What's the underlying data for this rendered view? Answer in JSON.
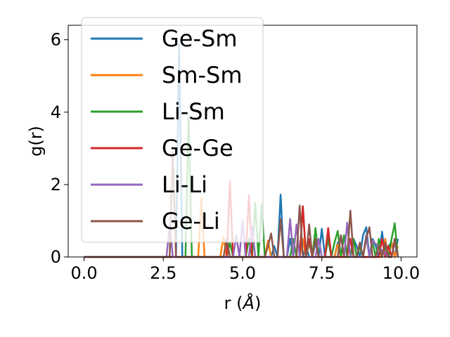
{
  "chart_data": {
    "type": "line",
    "xlabel": "r (",
    "xlabel_unit": "Å",
    "xlabel_close": ")",
    "ylabel": "g(r)",
    "xlim": [
      -0.5,
      10.5
    ],
    "ylim": [
      0,
      6.4
    ],
    "xticks": [
      0.0,
      2.5,
      5.0,
      7.5,
      10.0
    ],
    "xtick_labels": [
      "0.0",
      "2.5",
      "5.0",
      "7.5",
      "10.0"
    ],
    "yticks": [
      0,
      2,
      4,
      6
    ],
    "ytick_labels": [
      "0",
      "2",
      "4",
      "6"
    ],
    "grid": false,
    "legend_position": "top-left",
    "series": [
      {
        "name": "Ge-Sm",
        "color": "#1f77b4",
        "x": [
          0,
          2.8,
          2.9,
          3.0,
          3.1,
          3.2,
          5.8,
          5.9,
          6.0,
          6.1,
          6.2,
          6.3,
          6.4,
          6.5,
          6.6,
          6.7,
          6.8,
          6.9,
          7.0,
          7.1,
          7.2,
          7.3,
          7.4,
          7.5,
          7.6,
          7.7,
          7.8,
          7.9,
          8.0,
          8.1,
          8.2,
          8.3,
          8.4,
          8.5,
          8.6,
          8.7,
          8.8,
          8.9,
          9.0,
          9.1,
          9.2,
          9.3,
          9.4,
          9.5,
          9.6,
          9.7,
          9.8,
          9.9
        ],
        "y": [
          0,
          0,
          0,
          5.9,
          0,
          0,
          0,
          0,
          0.3,
          0,
          1.72,
          0,
          0,
          0.5,
          0,
          0,
          0,
          0,
          0.3,
          0,
          0,
          0.4,
          0,
          0.78,
          0,
          0.6,
          0,
          0,
          0.4,
          0,
          0.6,
          0,
          0,
          0.5,
          0.3,
          0,
          0.6,
          0.82,
          0,
          0.5,
          0.3,
          0,
          0.7,
          0,
          0.3,
          0.4,
          0,
          0.5
        ]
      },
      {
        "name": "Sm-Sm",
        "color": "#ff7f0e",
        "x": [
          0,
          3.5,
          3.6,
          3.7,
          3.8,
          3.9,
          4.3,
          4.4,
          4.5,
          4.6,
          5.7,
          5.8,
          5.9,
          6.8,
          6.9,
          7.0,
          7.9,
          8.0,
          8.1,
          9.3,
          9.4,
          9.5,
          9.6,
          9.7,
          9.8,
          9.9
        ],
        "y": [
          0,
          0,
          0,
          1.62,
          0,
          0,
          0,
          0.55,
          0,
          0,
          0,
          0.45,
          0,
          0,
          0.5,
          0,
          0,
          0.35,
          0,
          0,
          0,
          0.5,
          0,
          0.4,
          0,
          0.3
        ]
      },
      {
        "name": "Li-Sm",
        "color": "#2ca02c",
        "x": [
          0,
          3.1,
          3.2,
          3.3,
          3.4,
          3.5,
          4.5,
          4.6,
          4.7,
          4.8,
          5.1,
          5.2,
          5.3,
          5.4,
          5.5,
          5.6,
          5.7,
          6.5,
          6.6,
          6.7,
          6.8,
          6.9,
          7.0,
          7.1,
          7.2,
          7.3,
          7.4,
          7.5,
          7.6,
          7.7,
          7.8,
          7.9,
          8.0,
          8.1,
          8.2,
          8.3,
          8.4,
          8.5,
          8.6,
          8.7,
          8.8,
          8.9,
          9.0,
          9.1,
          9.2,
          9.3,
          9.4,
          9.5,
          9.6,
          9.7,
          9.8,
          9.9
        ],
        "y": [
          0,
          0,
          0,
          3.88,
          0,
          0,
          0,
          0.4,
          0,
          0,
          0,
          0.5,
          0,
          1.5,
          0,
          1.45,
          0,
          0,
          0.5,
          0,
          0,
          1.4,
          0,
          0.4,
          0,
          0.8,
          0,
          0,
          0,
          0.5,
          0,
          0.4,
          0.72,
          0,
          0.6,
          0,
          0,
          0.5,
          0,
          0.3,
          0,
          0.6,
          0,
          0.4,
          0,
          0.5,
          0,
          0.3,
          0,
          0.5,
          0.93,
          0
        ]
      },
      {
        "name": "Ge-Ge",
        "color": "#d62728",
        "x": [
          0,
          4.3,
          4.4,
          4.5,
          4.6,
          4.7,
          5.0,
          5.1,
          5.2,
          5.3,
          6.8,
          6.9,
          7.0,
          7.1,
          7.2,
          7.5,
          7.6,
          7.7,
          7.8,
          8.3,
          8.4,
          8.5,
          8.6,
          9.3,
          9.4,
          9.5,
          9.6,
          9.7,
          9.8,
          9.9
        ],
        "y": [
          0,
          0,
          0,
          0,
          2.1,
          0,
          0,
          0,
          1.7,
          0,
          0,
          1.4,
          0,
          0.5,
          0,
          0,
          0,
          0.8,
          0,
          0,
          0.5,
          0,
          0,
          0,
          0.5,
          0,
          0.3,
          0,
          0.5,
          0
        ]
      },
      {
        "name": "Li-Li",
        "color": "#9467bd",
        "x": [
          0,
          2.5,
          2.6,
          2.7,
          2.8,
          4.6,
          4.7,
          4.8,
          4.9,
          5.0,
          5.1,
          5.2,
          5.3,
          5.4,
          6.2,
          6.3,
          6.4,
          6.5,
          6.6,
          6.7,
          6.8,
          7.3,
          7.4,
          7.5,
          7.9,
          8.0,
          8.1,
          8.2,
          8.3,
          8.4,
          8.8,
          8.9,
          9.0,
          9.1,
          9.6,
          9.7,
          9.8,
          9.9
        ],
        "y": [
          0,
          0,
          0,
          0.9,
          0,
          0,
          0,
          0.6,
          0,
          1.0,
          0,
          0,
          0.85,
          0,
          0,
          0,
          0,
          1.05,
          0,
          0.9,
          0,
          0,
          0.5,
          0,
          0,
          0,
          0.6,
          0,
          0.95,
          0,
          0,
          0.6,
          0,
          0.45,
          0,
          0,
          0.4,
          0
        ]
      },
      {
        "name": "Ge-Li",
        "color": "#8c564b",
        "x": [
          0,
          2.6,
          2.7,
          2.8,
          2.9,
          3.0,
          4.4,
          4.5,
          4.6,
          5.6,
          5.7,
          5.8,
          5.9,
          6.0,
          6.1,
          6.2,
          6.3,
          6.6,
          6.7,
          6.8,
          6.9,
          7.0,
          7.1,
          7.2,
          7.3,
          7.4,
          8.0,
          8.1,
          8.2,
          8.3,
          8.4,
          8.5,
          8.6,
          8.7,
          8.8,
          8.9,
          9.0,
          9.1,
          9.2,
          9.3,
          9.4,
          9.5,
          9.6,
          9.7,
          9.8,
          9.9
        ],
        "y": [
          0,
          0,
          0,
          2.9,
          0,
          0,
          0,
          0.5,
          0,
          0,
          0,
          0.3,
          0.65,
          0,
          0,
          1.05,
          0,
          0,
          0,
          1.42,
          0,
          0,
          0.9,
          0,
          0.5,
          0,
          0,
          0.6,
          0,
          0,
          1.28,
          0,
          0,
          0.4,
          0,
          0.5,
          0.82,
          0,
          0,
          0.3,
          0,
          0.4,
          0,
          0,
          0.5,
          0
        ]
      }
    ]
  }
}
